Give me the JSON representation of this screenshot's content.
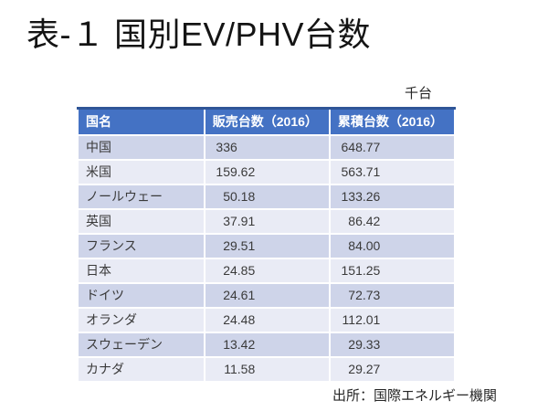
{
  "slide": {
    "title": "表-１ 国別EV/PHV台数",
    "unit_label": "千台",
    "source": "出所：国際エネルギー機関"
  },
  "colors": {
    "header_fill": "#4472C4",
    "header_top_border": "#2F5597",
    "header_text": "#FFFFFF",
    "band_odd_row": "#CED4E9",
    "band_even_row": "#E9EBF5",
    "body_text": "#3A3A3A"
  },
  "chart_data": {
    "type": "table",
    "title": "表-１ 国別EV/PHV台数",
    "unit": "千台",
    "columns": [
      "国名",
      "販売台数（2016）",
      "累積台数（2016）"
    ],
    "rows": [
      [
        "中国",
        "336",
        "648.77"
      ],
      [
        "米国",
        "159.62",
        "563.71"
      ],
      [
        "ノールウェー",
        "50.18",
        "133.26"
      ],
      [
        "英国",
        "37.91",
        "86.42"
      ],
      [
        "フランス",
        "29.51",
        "84.00"
      ],
      [
        "日本",
        "24.85",
        "151.25"
      ],
      [
        "ドイツ",
        "24.61",
        "72.73"
      ],
      [
        "オランダ",
        "24.48",
        "112.01"
      ],
      [
        "スウェーデン",
        "13.42",
        "29.33"
      ],
      [
        "カナダ",
        "11.58",
        "29.27"
      ]
    ],
    "source": "出所：国際エネルギー機関"
  }
}
